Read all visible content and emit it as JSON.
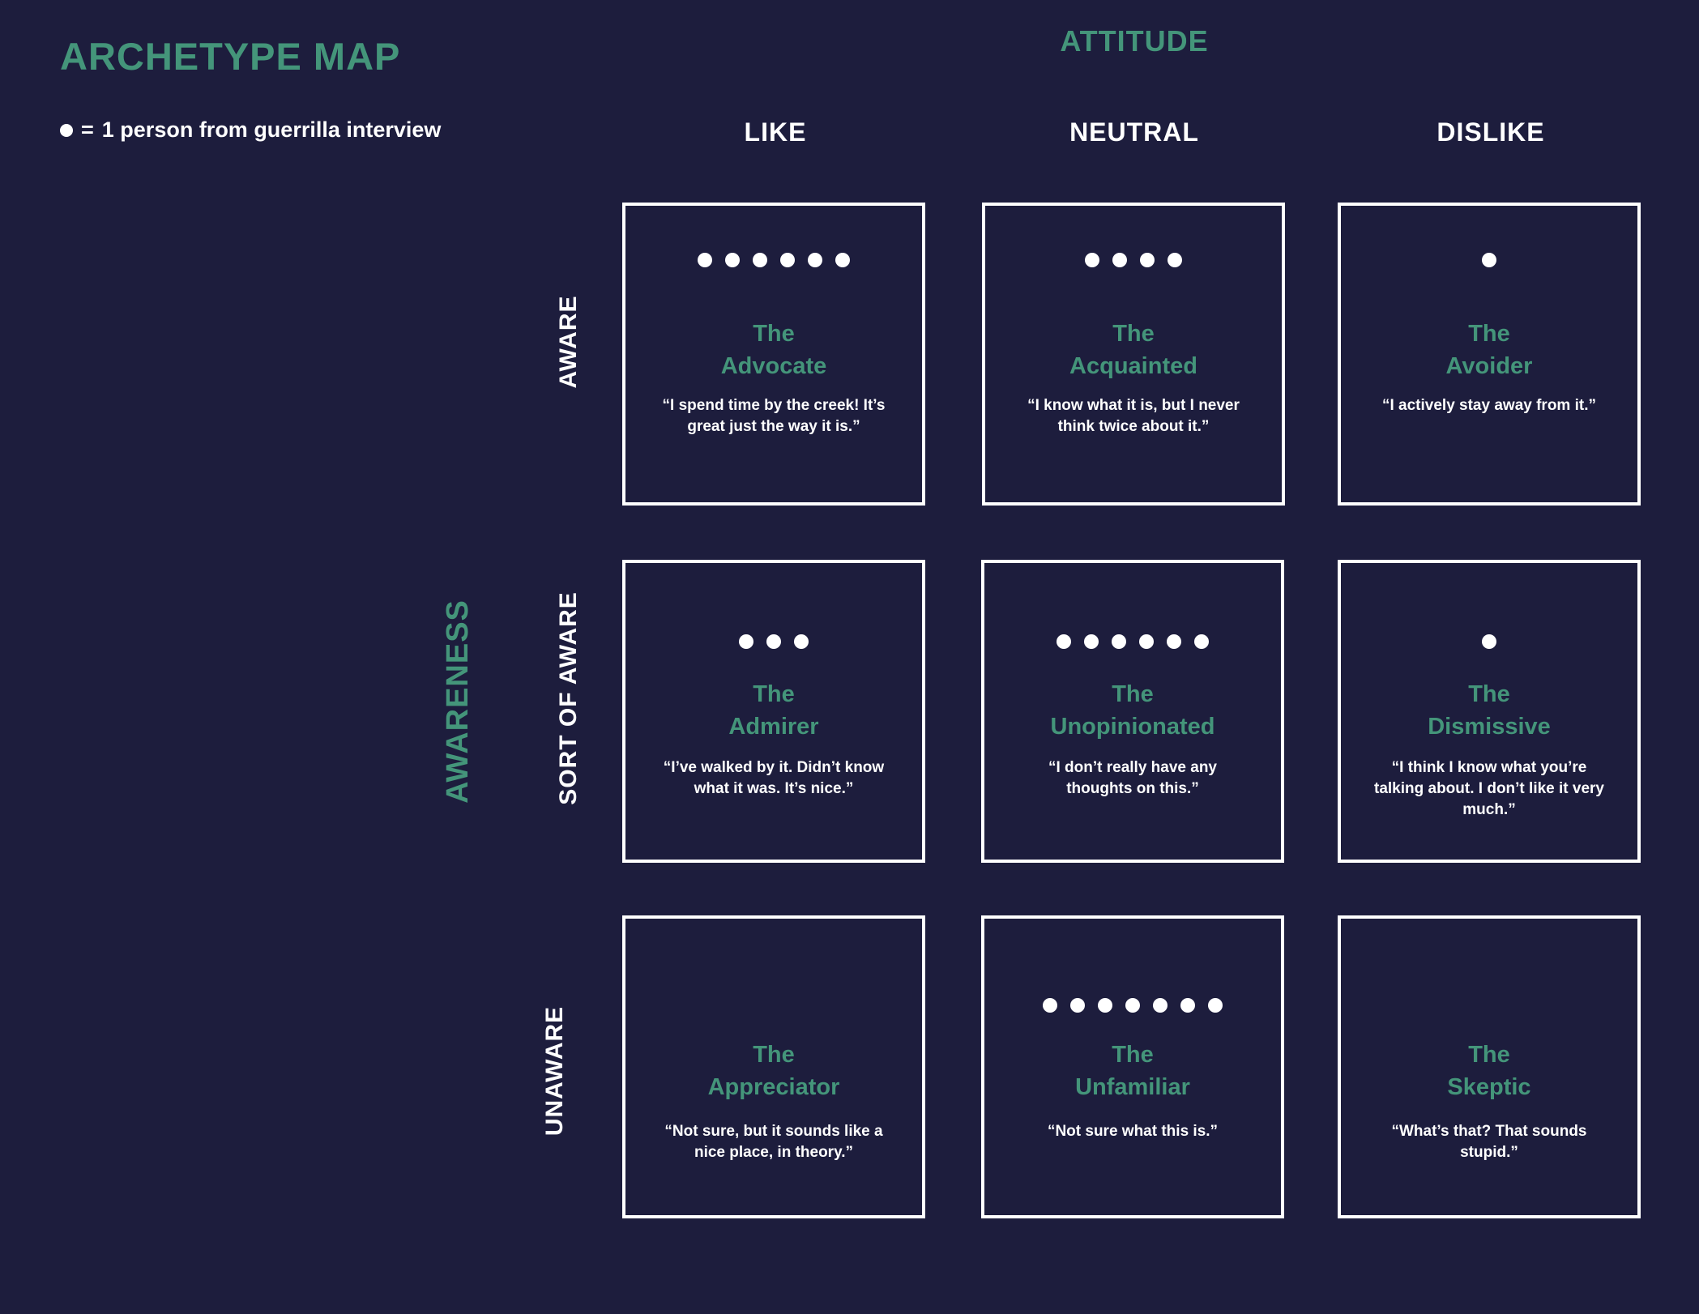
{
  "title": "ARCHETYPE MAP",
  "legend": {
    "symbol": "●",
    "equals": "=",
    "text": "1 person from guerrilla interview"
  },
  "axes": {
    "x_title": "ATTITUDE",
    "y_title": "AWARENESS",
    "columns": [
      "LIKE",
      "NEUTRAL",
      "DISLIKE"
    ],
    "rows": [
      "AWARE",
      "SORT OF AWARE",
      "UNAWARE"
    ]
  },
  "colors": {
    "background": "#1d1d3d",
    "accent": "#44957a",
    "foreground": "#ffffff"
  },
  "cells": [
    {
      "row": "AWARE",
      "column": "LIKE",
      "count": 6,
      "the": "The",
      "name": "Advocate",
      "quote": "“I spend time by the creek! It’s great just the way it is.”"
    },
    {
      "row": "AWARE",
      "column": "NEUTRAL",
      "count": 4,
      "the": "The",
      "name": "Acquainted",
      "quote": "“I know what it is, but I never think twice about it.”"
    },
    {
      "row": "AWARE",
      "column": "DISLIKE",
      "count": 1,
      "the": "The",
      "name": "Avoider",
      "quote": "“I actively stay away from it.”"
    },
    {
      "row": "SORT OF AWARE",
      "column": "LIKE",
      "count": 3,
      "the": "The",
      "name": "Admirer",
      "quote": "“I’ve walked by it. Didn’t know what it was. It’s nice.”"
    },
    {
      "row": "SORT OF AWARE",
      "column": "NEUTRAL",
      "count": 6,
      "the": "The",
      "name": "Unopinionated",
      "quote": "“I don’t really have any thoughts on this.”"
    },
    {
      "row": "SORT OF AWARE",
      "column": "DISLIKE",
      "count": 1,
      "the": "The",
      "name": "Dismissive",
      "quote": "“I think I know what you’re talking about. I don’t like it very much.”"
    },
    {
      "row": "UNAWARE",
      "column": "LIKE",
      "count": 0,
      "the": "The",
      "name": "Appreciator",
      "quote": "“Not sure, but it sounds like a nice place, in theory.”"
    },
    {
      "row": "UNAWARE",
      "column": "NEUTRAL",
      "count": 7,
      "the": "The",
      "name": "Unfamiliar",
      "quote": "“Not sure what this is.”"
    },
    {
      "row": "UNAWARE",
      "column": "DISLIKE",
      "count": 0,
      "the": "The",
      "name": "Skeptic",
      "quote": "“What’s that? That sounds stupid.”"
    }
  ]
}
